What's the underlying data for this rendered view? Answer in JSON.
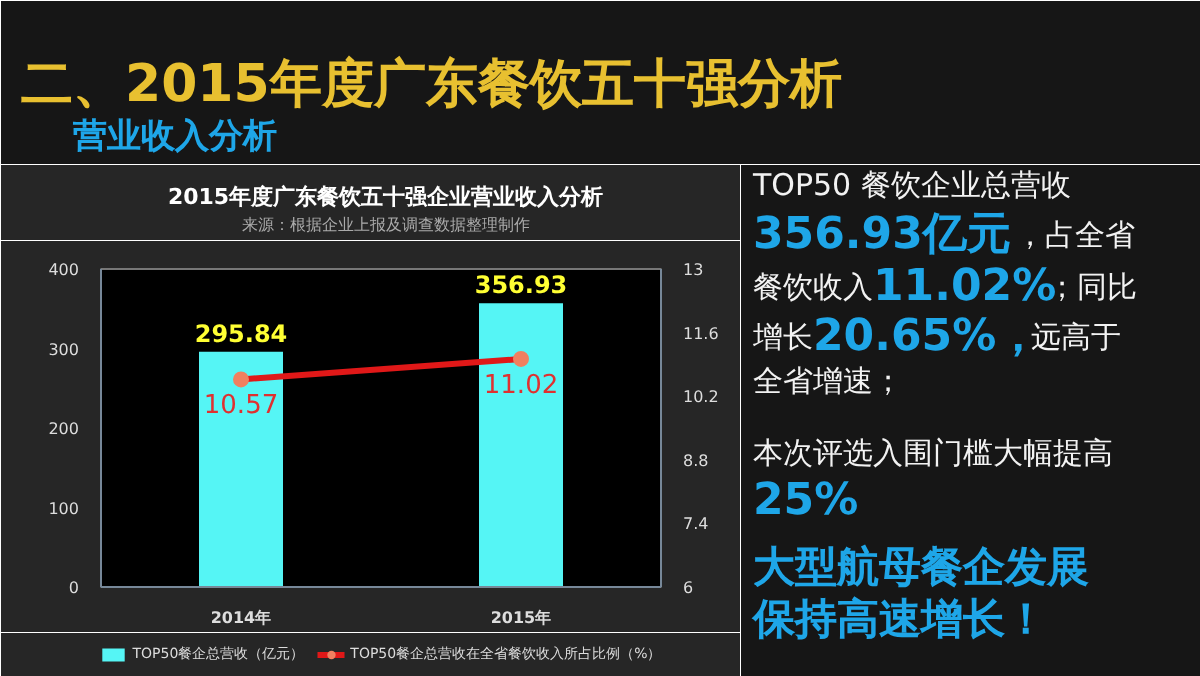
{
  "chart_data": {
    "type": "bar",
    "title": "2015年度广东餐饮五十强企业营业收入分析",
    "subtitle": "来源：根据企业上报及调查数据整理制作",
    "categories": [
      "2014年",
      "2015年"
    ],
    "series": [
      {
        "name": "TOP50餐企总营收（亿元）",
        "color": "#55f5f5",
        "values": [
          295.84,
          356.93
        ]
      },
      {
        "name": "TOP50餐企总营收在全省餐饮收入所占比例（%）",
        "type": "line",
        "axis": "y2",
        "marker": "circle",
        "color": "#e01818",
        "values": [
          10.57,
          11.02
        ]
      }
    ],
    "ylim": [
      0,
      400
    ],
    "yticks": [
      0,
      100,
      200,
      300,
      400
    ],
    "y2lim": [
      6,
      13
    ],
    "y2ticks": [
      6,
      7.4,
      8.8,
      10.2,
      11.6,
      13
    ],
    "data_labels": true,
    "legend": "bottom",
    "grid": false,
    "annotations": [
      "二、2015年度广东餐饮五十强分析",
      "营业收入分析",
      "TOP50 餐饮企业总营收",
      "356.93亿元",
      "，占全省",
      "餐饮收入",
      "11.02%",
      "；同比",
      "增长",
      "20.65%，",
      "远高于",
      "全省增速；",
      "本次评选入围门槛大幅提高",
      "25%",
      "大型航母餐企发展",
      "保持高速增长！"
    ]
  }
}
